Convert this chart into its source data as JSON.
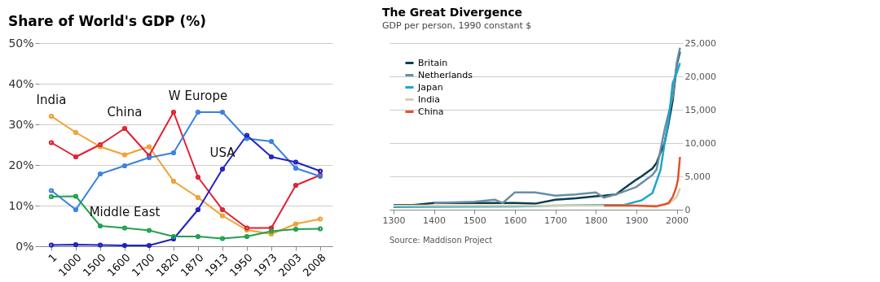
{
  "chart_data": [
    {
      "type": "line",
      "title": "Share of World's GDP (%)",
      "categories": [
        "1",
        "1000",
        "1500",
        "1600",
        "1700",
        "1820",
        "1870",
        "1913",
        "1950",
        "1973",
        "2003",
        "2008"
      ],
      "series": [
        {
          "color": "#f0a030",
          "values": [
            32,
            28,
            24.5,
            22.5,
            24.5,
            16,
            12,
            7.5,
            4,
            3,
            5.5,
            6.7
          ]
        },
        {
          "color": "#e02030",
          "values": [
            25.5,
            22,
            25,
            29,
            22.3,
            33,
            17,
            9,
            4.5,
            4.5,
            15,
            17.5
          ]
        },
        {
          "color": "#3a80e0",
          "values": [
            13.7,
            9,
            17.8,
            19.8,
            21.8,
            23,
            33,
            33,
            26.5,
            25.8,
            19.2,
            17.2
          ]
        },
        {
          "color": "#2222c0",
          "values": [
            0.3,
            0.4,
            0.3,
            0.2,
            0.2,
            1.8,
            9,
            19,
            27.3,
            22,
            20.7,
            18.5
          ]
        },
        {
          "color": "#22a050",
          "values": [
            12.2,
            12.3,
            5,
            4.5,
            3.9,
            2.4,
            2.4,
            1.9,
            2.4,
            3.7,
            4.2,
            4.3
          ]
        }
      ],
      "annotations": [
        {
          "text": "India",
          "x": "1",
          "y": 32
        },
        {
          "text": "China",
          "x": "1600",
          "y": 29
        },
        {
          "text": "W Europe",
          "x": "1870",
          "y": 33
        },
        {
          "text": "USA",
          "x": "1913",
          "y": 19
        },
        {
          "text": "Middle East",
          "x": "1600",
          "y": 4.5
        }
      ],
      "ylim": [
        0,
        50
      ],
      "yticks": [
        {
          "value": 0,
          "label": "0%"
        },
        {
          "value": 10,
          "label": "10%"
        },
        {
          "value": 20,
          "label": "20%"
        },
        {
          "value": 30,
          "label": "30%"
        },
        {
          "value": 40,
          "label": "40%"
        },
        {
          "value": 50,
          "label": "50%"
        }
      ],
      "grid": "y",
      "marker": "circle",
      "legend": false
    },
    {
      "type": "line",
      "title": "The Great Divergence",
      "subtitle": "GDP per person, 1990 constant $",
      "annotations": [
        "Source: Maddison Project"
      ],
      "series": [
        {
          "name": "Britain",
          "color": "#0b3d4f",
          "x": [
            1300,
            1348,
            1400,
            1450,
            1500,
            1550,
            1600,
            1650,
            1700,
            1750,
            1800,
            1820,
            1850,
            1870,
            1900,
            1913,
            1940,
            1950,
            1960,
            1970,
            1980,
            1990,
            2000,
            2008
          ],
          "values": [
            700,
            700,
            1000,
            1000,
            1000,
            1000,
            1000,
            900,
            1500,
            1700,
            2000,
            2100,
            2300,
            3200,
            4500,
            5000,
            6200,
            7000,
            8600,
            10000,
            13000,
            16400,
            21700,
            23700
          ]
        },
        {
          "name": "Netherlands",
          "color": "#6a8ea3",
          "x": [
            1400,
            1500,
            1550,
            1570,
            1600,
            1650,
            1700,
            1750,
            1800,
            1820,
            1850,
            1900,
            1940,
            1950,
            1970,
            1990,
            2000,
            2008
          ],
          "values": [
            1000,
            1200,
            1500,
            1000,
            2600,
            2600,
            2100,
            2300,
            2600,
            1800,
            2300,
            3400,
            5200,
            6000,
            12000,
            17000,
            22000,
            24300
          ]
        },
        {
          "name": "Japan",
          "color": "#1fa5c8",
          "x": [
            1300,
            1600,
            1700,
            1820,
            1870,
            1900,
            1913,
            1940,
            1960,
            1970,
            1980,
            1990,
            2000,
            2008
          ],
          "values": [
            400,
            500,
            600,
            700,
            700,
            1200,
            1400,
            2500,
            6000,
            10000,
            13500,
            19000,
            20500,
            22000
          ]
        },
        {
          "name": "India",
          "color": "#d9cdb0",
          "x": [
            1300,
            1600,
            1700,
            1820,
            1900,
            1950,
            1980,
            2000,
            2008
          ],
          "values": [
            600,
            600,
            600,
            600,
            600,
            600,
            900,
            1900,
            3200
          ]
        },
        {
          "name": "China",
          "color": "#e5502a",
          "x": [
            1820,
            1850,
            1900,
            1950,
            1970,
            1980,
            1990,
            1998,
            2003,
            2008
          ],
          "values": [
            600,
            600,
            600,
            500,
            800,
            1000,
            1900,
            3200,
            4500,
            7900
          ]
        }
      ],
      "xlim": [
        1290,
        2015
      ],
      "xticks": [
        1300,
        1400,
        1500,
        1600,
        1700,
        1800,
        1900,
        2000
      ],
      "ylim": [
        0,
        25000
      ],
      "yticks": [
        0,
        {
          "value": 5000,
          "label": "5,000"
        },
        {
          "value": 10000,
          "label": "10,000"
        },
        {
          "value": 15000,
          "label": "15,000"
        },
        {
          "value": 20000,
          "label": "20,000"
        },
        {
          "value": 25000,
          "label": "25,000"
        }
      ],
      "grid": "y",
      "legend": "top left"
    }
  ]
}
